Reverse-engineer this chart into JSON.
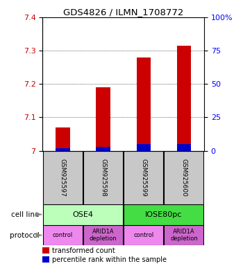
{
  "title": "GDS4826 / ILMN_1708772",
  "samples": [
    "GSM925597",
    "GSM925598",
    "GSM925599",
    "GSM925600"
  ],
  "transformed_counts": [
    7.07,
    7.19,
    7.28,
    7.315
  ],
  "percentile_ranks": [
    2,
    3,
    5,
    5
  ],
  "ylim_left": [
    7.0,
    7.4
  ],
  "ylim_right": [
    0,
    100
  ],
  "yticks_left": [
    7.0,
    7.1,
    7.2,
    7.3,
    7.4
  ],
  "yticks_right": [
    0,
    25,
    50,
    75,
    100
  ],
  "yticklabels_left": [
    "7",
    "7.1",
    "7.2",
    "7.3",
    "7.4"
  ],
  "yticklabels_right": [
    "0",
    "25",
    "50",
    "75",
    "100%"
  ],
  "bar_color_red": "#cc0000",
  "bar_color_blue": "#0000cc",
  "cell_line_labels": [
    "OSE4",
    "IOSE80pc"
  ],
  "cell_line_spans": [
    [
      0,
      2
    ],
    [
      2,
      4
    ]
  ],
  "cell_line_colors": [
    "#bbffbb",
    "#44dd44"
  ],
  "protocol_labels": [
    "control",
    "ARID1A\ndepletion",
    "control",
    "ARID1A\ndepletion"
  ],
  "protocol_colors": [
    "#ee88ee",
    "#cc66cc",
    "#ee88ee",
    "#cc66cc"
  ],
  "legend_red_label": "transformed count",
  "legend_blue_label": "percentile rank within the sample",
  "bar_width": 0.35,
  "baseline": 7.0,
  "pct_rank_scale": 0.004
}
